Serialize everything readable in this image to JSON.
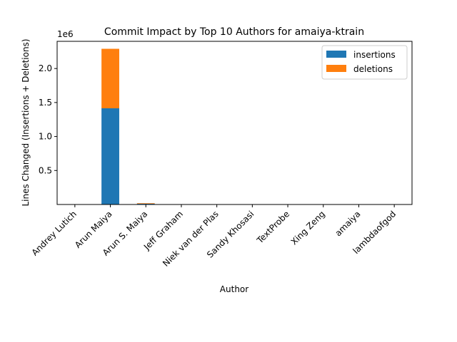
{
  "chart_data": {
    "type": "bar",
    "stacked": true,
    "title": "Commit Impact by Top 10 Authors for amaiya-ktrain",
    "xlabel": "Author",
    "ylabel": "Lines Changed (Insertions + Deletions)",
    "y_offset_label": "1e6",
    "ylim": [
      0,
      2400000
    ],
    "yticks": [
      {
        "value": 500000,
        "label": "0.5"
      },
      {
        "value": 1000000,
        "label": "1.0"
      },
      {
        "value": 1500000,
        "label": "1.5"
      },
      {
        "value": 2000000,
        "label": "2.0"
      }
    ],
    "categories": [
      "Andrey Lutich",
      "Arun Maiya",
      "Arun S. Maiya",
      "Jeff Graham",
      "Niek van der Plas",
      "Sandy Khosasi",
      "TextProbe",
      "Xing Zeng",
      "amaiya",
      "lambdaofgod"
    ],
    "series": [
      {
        "name": "insertions",
        "color": "#1f77b4",
        "values": [
          10,
          1415000,
          12000,
          20,
          10,
          10,
          20,
          10,
          10,
          10
        ]
      },
      {
        "name": "deletions",
        "color": "#ff7f0e",
        "values": [
          5,
          875000,
          8000,
          10,
          5,
          5,
          10,
          5,
          5,
          5
        ]
      }
    ],
    "legend_position": "top-right",
    "grid": false
  }
}
